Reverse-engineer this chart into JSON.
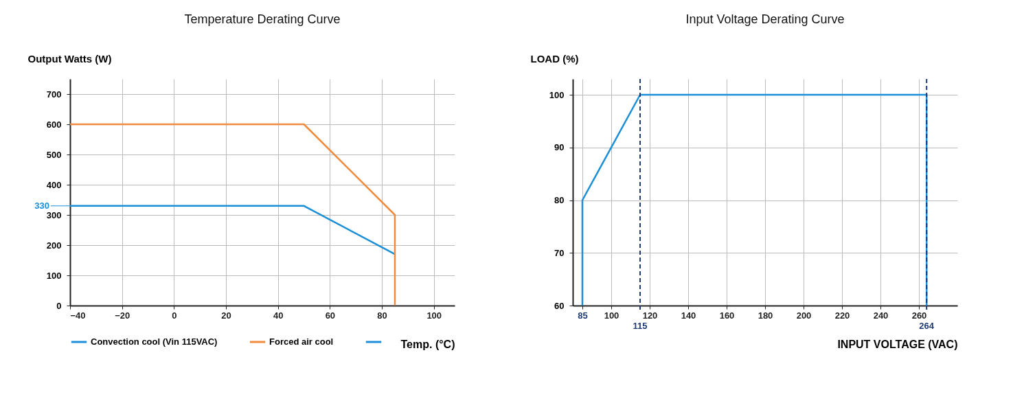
{
  "chart_data": [
    {
      "type": "line",
      "title": "Temperature Derating Curve",
      "xlabel": "Temp. (°C)",
      "ylabel": "Output Watts (W)",
      "xlim": [
        -40,
        108
      ],
      "xticks": [
        -40,
        -20,
        0,
        20,
        40,
        60,
        80,
        100
      ],
      "ylim": [
        0,
        750
      ],
      "yticks": [
        0,
        100,
        200,
        300,
        400,
        500,
        600,
        700
      ],
      "grid": true,
      "legend": "bottom left",
      "marker": "none",
      "line_style": "solid",
      "ref_lines": [
        {
          "axis": "y",
          "value": 330,
          "label": "330",
          "color": "#1a8fd8"
        }
      ],
      "series": [
        {
          "name": "Convection cool (Vin 115VAC)",
          "color": "#1a8fd8",
          "x": [
            -40,
            50,
            85
          ],
          "values": [
            330,
            330,
            170
          ]
        },
        {
          "name": "Forced air cool",
          "color": "#f08a3c",
          "x": [
            -40,
            50,
            85,
            85
          ],
          "values": [
            600,
            600,
            300,
            0
          ]
        }
      ]
    },
    {
      "type": "line",
      "title": "Input Voltage Derating Curve",
      "xlabel": "INPUT VOLTAGE (VAC)",
      "ylabel": "LOAD (%)",
      "xlim": [
        80,
        280
      ],
      "xticks": [
        85,
        100,
        120,
        140,
        160,
        180,
        200,
        220,
        240,
        260
      ],
      "ylim": [
        60,
        103
      ],
      "yticks": [
        60,
        70,
        80,
        90,
        100
      ],
      "grid": true,
      "legend": false,
      "marker": "none",
      "line_style": "solid",
      "ref_lines": [
        {
          "axis": "x",
          "value": 115,
          "label": "115",
          "color": "#1f3b73",
          "line_style": "dashed"
        },
        {
          "axis": "x",
          "value": 264,
          "label": "264",
          "color": "#1f3b73",
          "line_style": "dashed"
        }
      ],
      "series": [
        {
          "color": "#1a8fd8",
          "x": [
            85,
            85,
            115,
            264,
            264
          ],
          "values": [
            60,
            80,
            100,
            100,
            60
          ]
        }
      ]
    }
  ]
}
